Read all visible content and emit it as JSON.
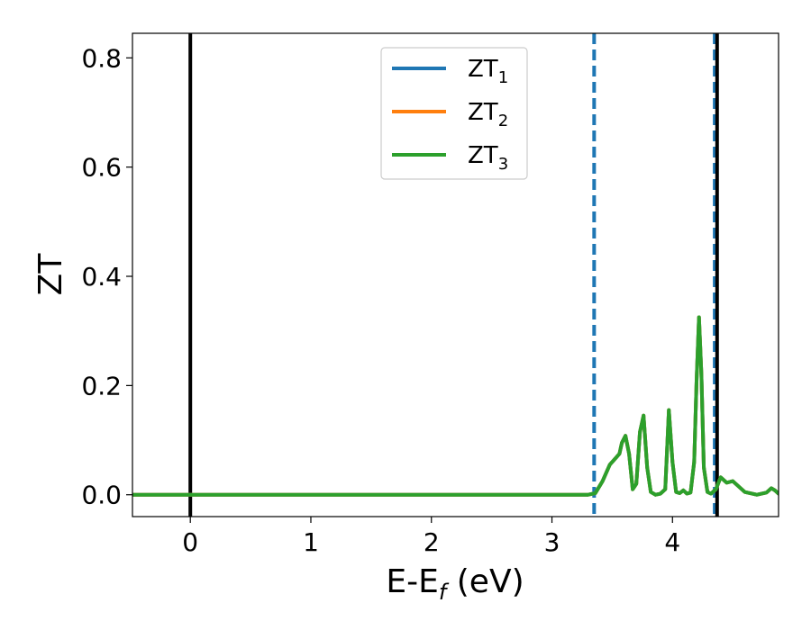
{
  "chart_data": {
    "type": "line",
    "title": "",
    "xlabel": {
      "base": "E-E",
      "sub": "f",
      "suffix": " (eV)"
    },
    "ylabel": "ZT",
    "xlim": [
      -0.48,
      4.88
    ],
    "ylim": [
      -0.04,
      0.845
    ],
    "xticks": [
      0,
      1,
      2,
      3,
      4
    ],
    "yticks": [
      0.0,
      0.2,
      0.4,
      0.6,
      0.8
    ],
    "grid": false,
    "legend": {
      "placement": "upper-center",
      "entries": [
        {
          "base": "ZT",
          "sub": "1",
          "color": "#1f77b4"
        },
        {
          "base": "ZT",
          "sub": "2",
          "color": "#ff7f0e"
        },
        {
          "base": "ZT",
          "sub": "3",
          "color": "#2ca02c"
        }
      ]
    },
    "vlines": [
      {
        "x": 0.0,
        "style": "solid",
        "color": "#000000"
      },
      {
        "x": 3.35,
        "style": "dashed",
        "color": "#1f77b4"
      },
      {
        "x": 4.35,
        "style": "dashed",
        "color": "#1f77b4"
      },
      {
        "x": 4.37,
        "style": "solid",
        "color": "#000000"
      }
    ],
    "series": [
      {
        "name": "ZT1",
        "color": "#1f77b4",
        "x": [
          -0.48,
          3.0,
          3.3,
          3.36,
          3.42,
          3.48,
          3.52,
          3.56,
          3.58,
          3.61,
          3.64,
          3.67,
          3.7,
          3.73,
          3.76,
          3.79,
          3.82,
          3.86,
          3.9,
          3.94,
          3.97,
          4.0,
          4.03,
          4.06,
          4.09,
          4.12,
          4.15,
          4.18,
          4.2,
          4.22,
          4.24,
          4.26,
          4.29,
          4.32,
          4.36,
          4.4,
          4.45,
          4.5,
          4.6,
          4.7,
          4.78,
          4.82,
          4.85,
          4.88
        ],
        "y": [
          0.0,
          0.0,
          0.0,
          0.003,
          0.025,
          0.055,
          0.065,
          0.075,
          0.095,
          0.108,
          0.075,
          0.01,
          0.02,
          0.115,
          0.145,
          0.05,
          0.005,
          0.0,
          0.002,
          0.01,
          0.155,
          0.06,
          0.005,
          0.003,
          0.008,
          0.002,
          0.004,
          0.06,
          0.21,
          0.325,
          0.22,
          0.05,
          0.005,
          0.002,
          0.01,
          0.032,
          0.022,
          0.025,
          0.005,
          0.0,
          0.004,
          0.012,
          0.008,
          0.002
        ]
      },
      {
        "name": "ZT2",
        "color": "#ff7f0e",
        "x": [
          -0.48,
          3.0,
          3.3,
          3.36,
          3.42,
          3.48,
          3.52,
          3.56,
          3.58,
          3.61,
          3.64,
          3.67,
          3.7,
          3.73,
          3.76,
          3.79,
          3.82,
          3.86,
          3.9,
          3.94,
          3.97,
          4.0,
          4.03,
          4.06,
          4.09,
          4.12,
          4.15,
          4.18,
          4.2,
          4.22,
          4.24,
          4.26,
          4.29,
          4.32,
          4.36,
          4.4,
          4.45,
          4.5,
          4.6,
          4.7,
          4.78,
          4.82,
          4.85,
          4.88
        ],
        "y": [
          0.0,
          0.0,
          0.0,
          0.003,
          0.025,
          0.055,
          0.065,
          0.075,
          0.095,
          0.108,
          0.075,
          0.01,
          0.02,
          0.115,
          0.145,
          0.05,
          0.005,
          0.0,
          0.002,
          0.01,
          0.155,
          0.06,
          0.005,
          0.003,
          0.008,
          0.002,
          0.004,
          0.06,
          0.21,
          0.325,
          0.22,
          0.05,
          0.005,
          0.002,
          0.01,
          0.032,
          0.022,
          0.025,
          0.005,
          0.0,
          0.004,
          0.012,
          0.008,
          0.002
        ]
      },
      {
        "name": "ZT3",
        "color": "#2ca02c",
        "x": [
          -0.48,
          3.0,
          3.3,
          3.36,
          3.42,
          3.48,
          3.52,
          3.56,
          3.58,
          3.61,
          3.64,
          3.67,
          3.7,
          3.73,
          3.76,
          3.79,
          3.82,
          3.86,
          3.9,
          3.94,
          3.97,
          4.0,
          4.03,
          4.06,
          4.09,
          4.12,
          4.15,
          4.18,
          4.2,
          4.22,
          4.24,
          4.26,
          4.29,
          4.32,
          4.36,
          4.4,
          4.45,
          4.5,
          4.6,
          4.7,
          4.78,
          4.82,
          4.85,
          4.88
        ],
        "y": [
          0.0,
          0.0,
          0.0,
          0.003,
          0.025,
          0.055,
          0.065,
          0.075,
          0.095,
          0.108,
          0.075,
          0.01,
          0.02,
          0.115,
          0.145,
          0.05,
          0.005,
          0.0,
          0.002,
          0.01,
          0.155,
          0.06,
          0.005,
          0.003,
          0.008,
          0.002,
          0.004,
          0.06,
          0.21,
          0.325,
          0.22,
          0.05,
          0.005,
          0.002,
          0.01,
          0.032,
          0.022,
          0.025,
          0.005,
          0.0,
          0.004,
          0.012,
          0.008,
          0.002
        ]
      }
    ]
  }
}
